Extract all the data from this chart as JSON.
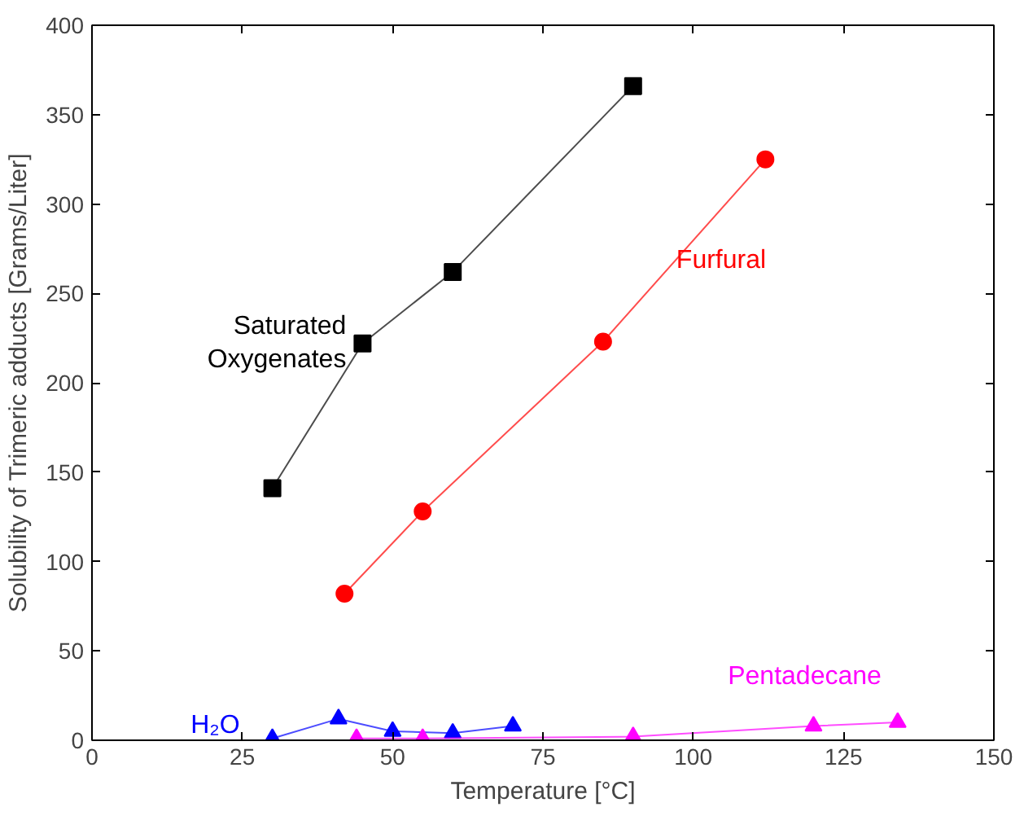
{
  "chart_data": {
    "type": "line",
    "xlabel": "Temperature [°C]",
    "ylabel": "Solubility of Trimeric adducts [Grams/Liter]",
    "xlim": [
      0,
      150
    ],
    "xticks": [
      0,
      25,
      50,
      75,
      100,
      125,
      150
    ],
    "ylim": [
      0,
      400
    ],
    "yticks": [
      0,
      50,
      100,
      150,
      200,
      250,
      300,
      350,
      400
    ],
    "grid": false,
    "series": [
      {
        "name": "Saturated Oxygenates",
        "color": "#000000",
        "marker": "square",
        "x": [
          30,
          45,
          60,
          90
        ],
        "values": [
          141,
          222,
          262,
          366
        ]
      },
      {
        "name": "Furfural",
        "color": "#ff0000",
        "marker": "circle",
        "x": [
          42,
          55,
          85,
          112
        ],
        "values": [
          82,
          128,
          223,
          325
        ]
      },
      {
        "name": "H₂O",
        "color": "#0000ff",
        "marker": "triangle",
        "x": [
          30,
          41,
          50,
          60,
          70
        ],
        "values": [
          1,
          12,
          5,
          4,
          8
        ]
      },
      {
        "name": "Pentadecane",
        "color": "#ff00ff",
        "marker": "triangle",
        "x": [
          44,
          55,
          90,
          120,
          134
        ],
        "values": [
          1,
          1,
          2,
          8,
          10
        ]
      }
    ]
  }
}
